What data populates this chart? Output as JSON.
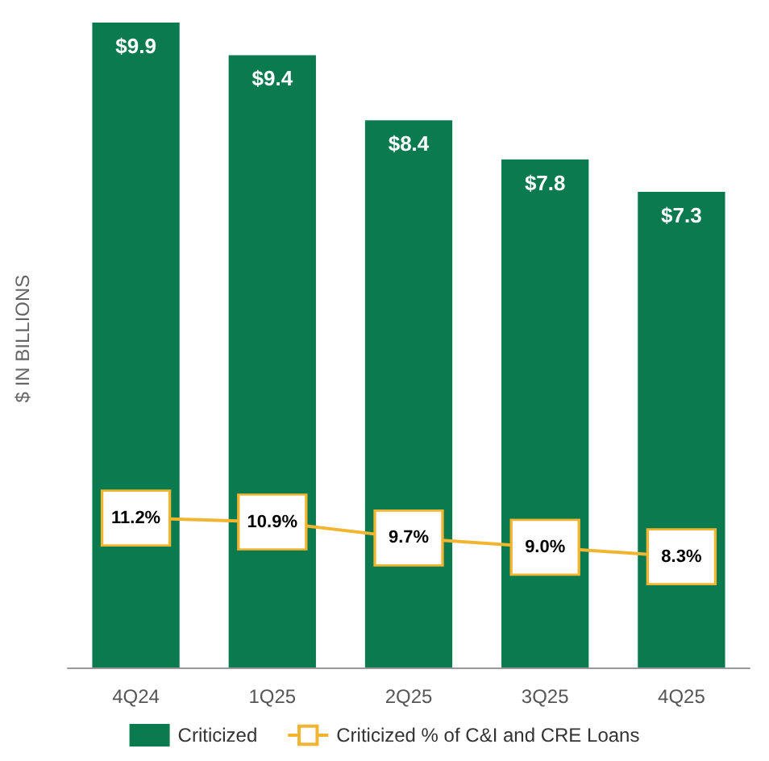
{
  "chart_data": {
    "type": "bar",
    "ylabel": "$ IN BILLIONS",
    "categories": [
      "4Q24",
      "1Q25",
      "2Q25",
      "3Q25",
      "4Q25"
    ],
    "series": [
      {
        "name": "Criticized",
        "color": "#0b7a4f",
        "values": [
          9.9,
          9.4,
          8.4,
          7.8,
          7.3
        ],
        "value_labels": [
          "$9.9",
          "$9.4",
          "$8.4",
          "$7.8",
          "$7.3"
        ]
      },
      {
        "name": "Criticized % of C&I and CRE Loans",
        "type": "line",
        "axis": "y2",
        "color": "#f2b530",
        "values": [
          11.2,
          10.9,
          9.7,
          9.0,
          8.3
        ],
        "value_labels": [
          "11.2%",
          "10.9%",
          "9.7%",
          "9.0%",
          "8.3%"
        ]
      }
    ],
    "tick_labels": "x",
    "grid": false,
    "legend": "bottom",
    "marker": "square",
    "line_style": "solid"
  }
}
